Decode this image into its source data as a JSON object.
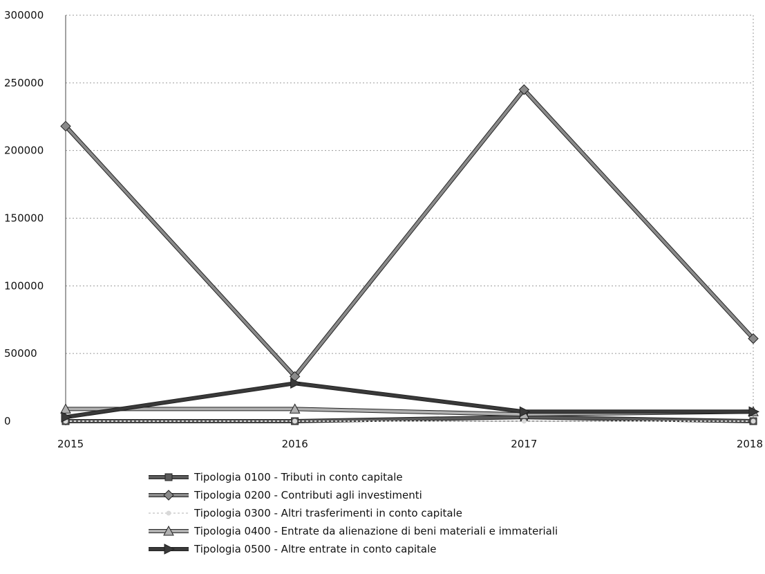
{
  "chart_data": {
    "type": "line",
    "title": "",
    "xlabel": "",
    "ylabel": "",
    "categories": [
      "2015",
      "2016",
      "2017",
      "2018"
    ],
    "ylim": [
      0,
      300000
    ],
    "yticks": [
      0,
      50000,
      100000,
      150000,
      200000,
      250000,
      300000
    ],
    "yticklabels": [
      "0",
      "50000",
      "100000",
      "150000",
      "200000",
      "250000",
      "300000"
    ],
    "grid": true,
    "legend_position": "bottom",
    "series": [
      {
        "name": "Tipologia 0100 - Tributi in conto capitale",
        "values": [
          0,
          0,
          3000,
          0
        ],
        "color": "#5a5a5a",
        "marker": "square"
      },
      {
        "name": "Tipologia 0200 - Contributi agli investimenti",
        "values": [
          218000,
          33000,
          245000,
          61000
        ],
        "color": "#8a8a8a",
        "marker": "diamond"
      },
      {
        "name": "Tipologia 0300 - Altri trasferimenti in conto capitale",
        "values": [
          0,
          0,
          0,
          0
        ],
        "color": "#d9d9d9",
        "marker": "dot"
      },
      {
        "name": "Tipologia 0400 - Entrate da alienazione di beni materiali e immateriali",
        "values": [
          9000,
          9000,
          5000,
          7000
        ],
        "color": "#b0b0b0",
        "marker": "triangle"
      },
      {
        "name": "Tipologia 0500 - Altre entrate in conto capitale",
        "values": [
          3000,
          28000,
          7000,
          7000
        ],
        "color": "#3a3a3a",
        "marker": "arrow"
      }
    ]
  }
}
